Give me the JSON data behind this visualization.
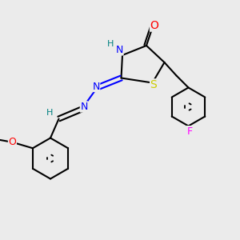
{
  "background_color": "#ebebeb",
  "bond_color": "#000000",
  "bond_lw": 1.5,
  "atom_colors": {
    "N": "#0000ff",
    "O": "#ff0000",
    "S": "#cccc00",
    "F": "#ff00ff",
    "H": "#008080",
    "C": "#000000"
  },
  "font_size": 9,
  "label_font": "DejaVu Sans"
}
